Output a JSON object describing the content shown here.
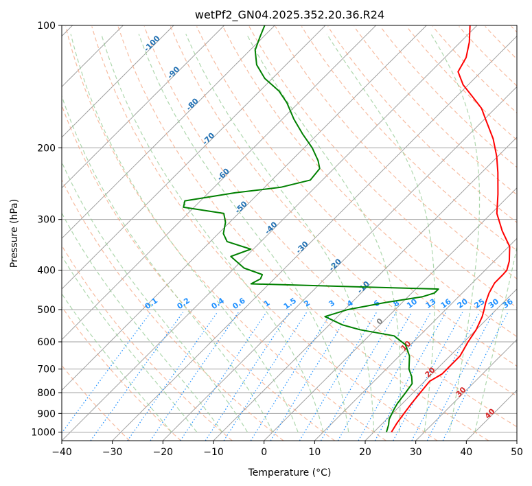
{
  "chart_data": {
    "type": "skew-t log-p diagram",
    "title": "wetPf2_GN04.2025.352.20.36.R24",
    "xlabel": "Temperature (°C)",
    "ylabel": "Pressure (hPa)",
    "xlim": [
      -40,
      50
    ],
    "ylim": [
      1050,
      100
    ],
    "y_scale": "log",
    "grid": true,
    "x_ticks": [
      -40,
      -30,
      -20,
      -10,
      0,
      10,
      20,
      30,
      40,
      50
    ],
    "x_tick_labels": [
      "−40",
      "−30",
      "−20",
      "−10",
      "0",
      "10",
      "20",
      "30",
      "40",
      "50"
    ],
    "y_ticks": [
      100,
      200,
      300,
      400,
      500,
      600,
      700,
      800,
      900,
      1000
    ],
    "y_tick_labels": [
      "100",
      "200",
      "300",
      "400",
      "500",
      "600",
      "700",
      "800",
      "900",
      "1000"
    ],
    "series": [
      {
        "color": "#ff0000",
        "pressure": [
          1000,
          950,
          900,
          850,
          800,
          750,
          720,
          700,
          650,
          600,
          560,
          520,
          500,
          480,
          455,
          430,
          410,
          400,
          380,
          350,
          320,
          290,
          260,
          230,
          210,
          190,
          170,
          160,
          150,
          140,
          130,
          120,
          110,
          100
        ],
        "temperature": [
          23.5,
          22.8,
          22.3,
          21.8,
          21.4,
          21.0,
          22.0,
          22.0,
          22.0,
          20.8,
          20.0,
          18.6,
          17.6,
          16.5,
          15.3,
          14.4,
          14.4,
          14.3,
          13.0,
          10.2,
          5.6,
          1.1,
          -2.5,
          -6.8,
          -10.2,
          -14.4,
          -19.8,
          -22.7,
          -26.7,
          -31.0,
          -34.6,
          -35.8,
          -38.2,
          -41.4
        ]
      },
      {
        "color": "#008000",
        "pressure": [
          1000,
          960,
          930,
          880,
          850,
          800,
          760,
          730,
          700,
          650,
          610,
          580,
          560,
          545,
          520,
          500,
          480,
          465,
          455,
          445,
          432,
          420,
          410,
          395,
          380,
          370,
          355,
          340,
          325,
          305,
          290,
          280,
          270,
          258,
          250,
          240,
          225,
          215,
          200,
          185,
          170,
          155,
          145,
          135,
          125,
          115,
          107,
          100
        ],
        "temperature": [
          22.5,
          21.5,
          20.5,
          19.5,
          19.0,
          18.5,
          18.0,
          16.5,
          14.5,
          12.0,
          9.0,
          5.0,
          -3.0,
          -7.4,
          -12.5,
          -9.4,
          -3.3,
          2.8,
          4.5,
          4.5,
          -33.6,
          -32.7,
          -33.2,
          -38.1,
          -41.0,
          -43.0,
          -40.5,
          -46.7,
          -49.0,
          -50.8,
          -52.9,
          -62.1,
          -63.1,
          -54.8,
          -46.8,
          -42.4,
          -42.8,
          -44.7,
          -48.4,
          -53.0,
          -57.7,
          -62.3,
          -66.2,
          -71.5,
          -75.8,
          -79.0,
          -80.6,
          -82.0
        ]
      }
    ],
    "dry_adiabat_labels": [
      "-100",
      "-90",
      "-80",
      "-70",
      "-60",
      "-50",
      "-40",
      "-30",
      "-20",
      "-10",
      "0",
      "10",
      "20",
      "30",
      "40"
    ],
    "mixing_ratio_labels": [
      "0.1",
      "0.2",
      "0.4",
      "0.6",
      "1",
      "1.5",
      "2",
      "3",
      "4",
      "6",
      "8",
      "10",
      "13",
      "16",
      "20",
      "25",
      "30",
      "36"
    ],
    "colors": {
      "temperature": "#ff0000",
      "dewpoint": "#008000",
      "isotherm": "#a0a0a0",
      "dry_adiabat": "#f4a582",
      "moist_adiabat": "#9acd99",
      "mixing_ratio": "#1e90ff",
      "adiabat_label_cold": "#1f6fb2",
      "adiabat_label_zero": "#808080",
      "adiabat_label_warm": "#d62728",
      "mixing_ratio_label": "#1e90ff",
      "curved_reference": "#d2b48c"
    }
  }
}
